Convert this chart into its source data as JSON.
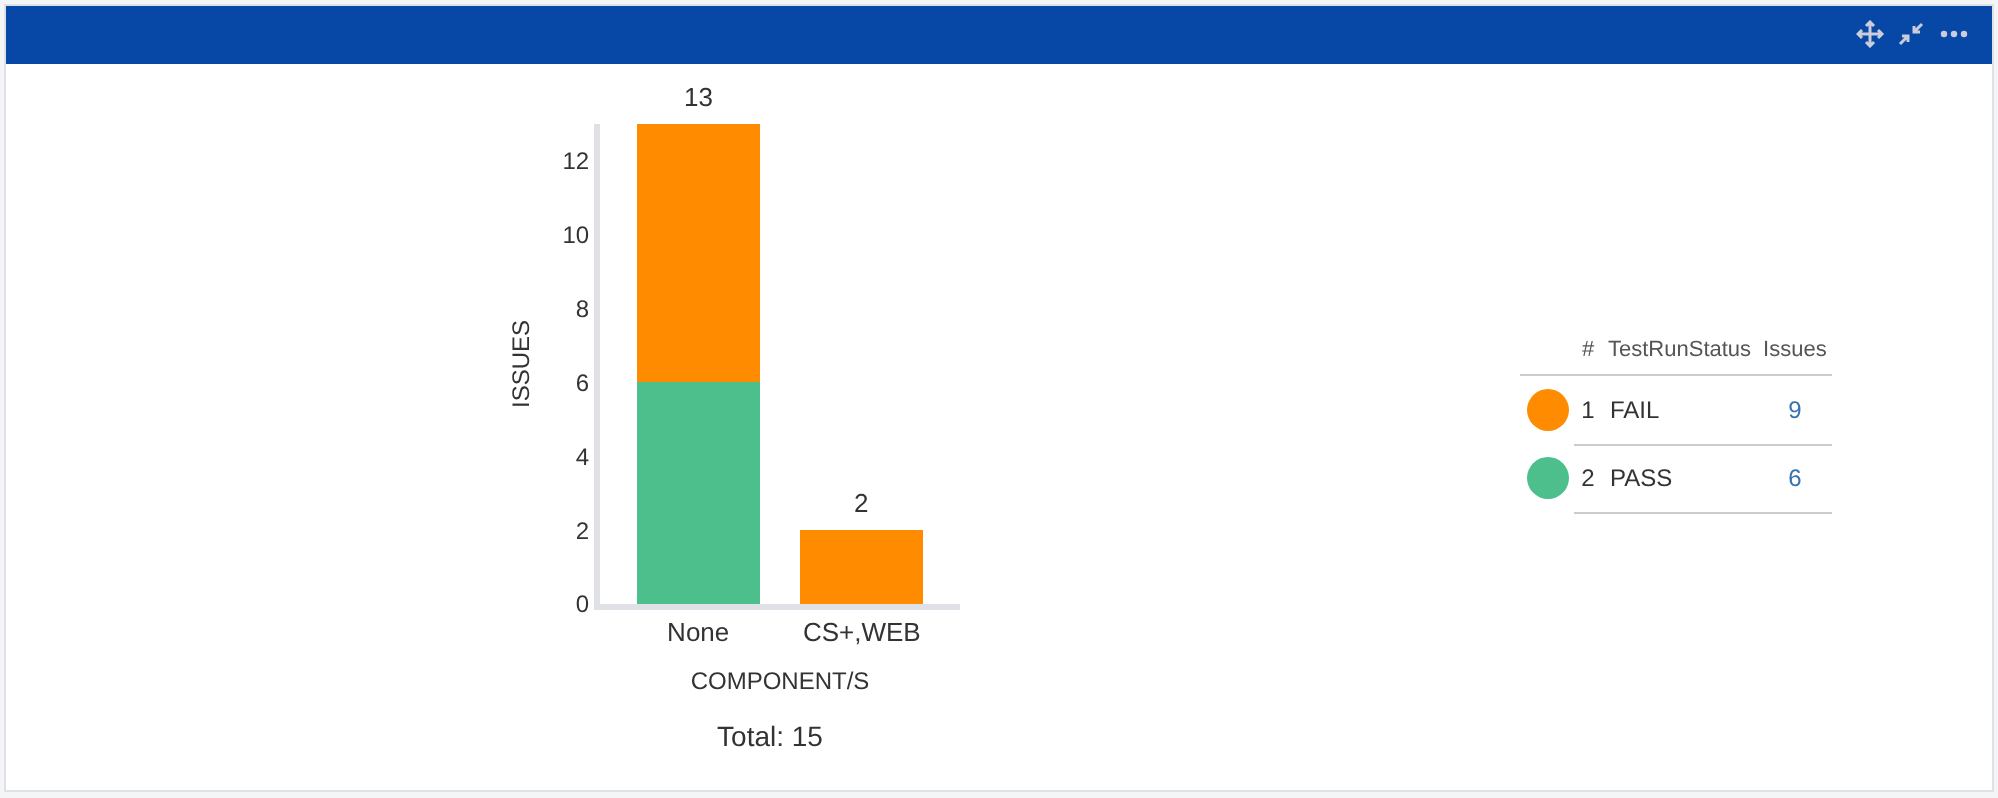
{
  "chart_data": {
    "type": "bar",
    "stacked": true,
    "xlabel": "COMPONENT/S",
    "ylabel": "ISSUES",
    "legend": "right",
    "legend_title": "TestRunStatus",
    "categories": [
      "None",
      "CS+,WEB"
    ],
    "series": [
      {
        "name": "PASS",
        "color": "#4cbf8c",
        "values": [
          6,
          0
        ]
      },
      {
        "name": "FAIL",
        "color": "#ff8c00",
        "values": [
          7,
          2
        ]
      }
    ],
    "totals": [
      "13",
      "2"
    ],
    "ylim": [
      0,
      13
    ],
    "yticks": [
      0,
      2,
      4,
      6,
      8,
      10,
      12
    ],
    "grid": false,
    "annotations": [
      "#",
      "Issues",
      "1",
      "2",
      "9",
      "6",
      "Total: 15"
    ]
  }
}
